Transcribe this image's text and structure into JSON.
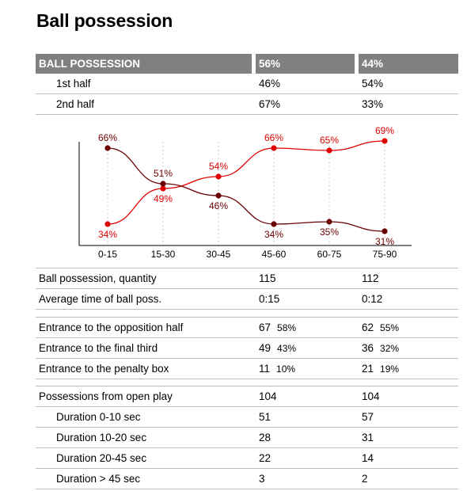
{
  "title": "Ball possession",
  "header": {
    "label": "BALL POSSESSION",
    "team1": "56%",
    "team2": "44%"
  },
  "halves": [
    {
      "label": "1st half",
      "team1": "46%",
      "team2": "54%"
    },
    {
      "label": "2nd half",
      "team1": "67%",
      "team2": "33%"
    }
  ],
  "colors": {
    "team1": "#e00000",
    "team2": "#6b0000",
    "header_bg": "#808080",
    "rule": "#bdbdbd"
  },
  "chart_data": {
    "type": "line",
    "categories": [
      "0-15",
      "15-30",
      "30-45",
      "45-60",
      "60-75",
      "75-90"
    ],
    "series": [
      {
        "values": [
          34,
          49,
          54,
          66,
          65,
          69
        ],
        "labels": [
          "34%",
          "49%",
          "54%",
          "66%",
          "65%",
          "69%"
        ]
      },
      {
        "values": [
          66,
          51,
          46,
          34,
          35,
          31
        ],
        "labels": [
          "66%",
          "51%",
          "46%",
          "34%",
          "35%",
          "31%"
        ]
      }
    ],
    "ylim": [
      25,
      75
    ],
    "grid": "vertical dashed"
  },
  "stats_a": [
    {
      "label": "Ball possession, quantity",
      "team1": "115",
      "team2": "112"
    },
    {
      "label": "Average time of ball poss.",
      "team1": "0:15",
      "team2": "0:12"
    }
  ],
  "stats_b": [
    {
      "label": "Entrance to the opposition half",
      "team1": "67",
      "team1_pct": "58%",
      "team2": "62",
      "team2_pct": "55%"
    },
    {
      "label": "Entrance to the final third",
      "team1": "49",
      "team1_pct": "43%",
      "team2": "36",
      "team2_pct": "32%"
    },
    {
      "label": "Entrance to the penalty box",
      "team1": "11",
      "team1_pct": "10%",
      "team2": "21",
      "team2_pct": "19%"
    }
  ],
  "stats_c": [
    {
      "label": "Possessions from open play",
      "team1": "104",
      "team2": "104"
    },
    {
      "label": "Duration  0-10 sec",
      "team1": "51",
      "team2": "57"
    },
    {
      "label": "Duration  10-20 sec",
      "team1": "28",
      "team2": "31"
    },
    {
      "label": "Duration  20-45 sec",
      "team1": "22",
      "team2": "14"
    },
    {
      "label": "Duration  > 45 sec",
      "team1": "3",
      "team2": "2"
    }
  ]
}
